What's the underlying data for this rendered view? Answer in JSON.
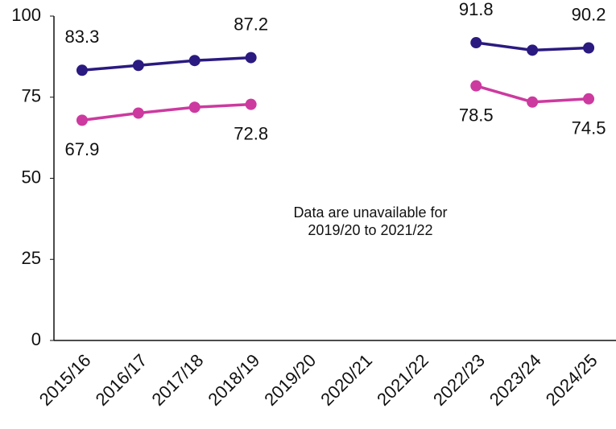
{
  "chart_data": {
    "type": "line",
    "categories": [
      "2015/16",
      "2016/17",
      "2017/18",
      "2018/19",
      "2019/20",
      "2020/21",
      "2021/22",
      "2022/23",
      "2023/24",
      "2024/25"
    ],
    "series": [
      {
        "color": "#2b1a80",
        "values": [
          83.3,
          84.8,
          86.3,
          87.2,
          null,
          null,
          null,
          91.8,
          89.5,
          90.2
        ],
        "value_labels": [
          "83.3",
          null,
          null,
          "87.2",
          null,
          null,
          null,
          "91.8",
          null,
          "90.2"
        ]
      },
      {
        "color": "#cc3a9f",
        "values": [
          67.9,
          70.1,
          71.9,
          72.8,
          null,
          null,
          null,
          78.5,
          73.5,
          74.5
        ],
        "value_labels": [
          "67.9",
          null,
          null,
          "72.8",
          null,
          null,
          null,
          "78.5",
          null,
          "74.5"
        ]
      }
    ],
    "ylim": [
      0,
      100
    ],
    "yticks": [
      0,
      25,
      50,
      75,
      100
    ],
    "annotation": [
      "Data are unavailable for",
      "2019/20 to 2021/22"
    ]
  }
}
